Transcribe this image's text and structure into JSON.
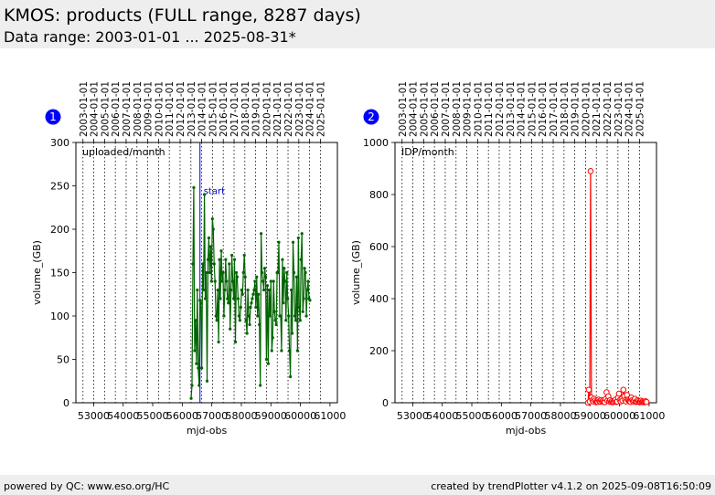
{
  "header": {
    "title": "KMOS: products (FULL range, 8287 days)",
    "subtitle": "Data range: 2003-01-01 ... 2025-08-31*"
  },
  "footer": {
    "left": "powered by QC: www.eso.org/HC",
    "right": "created by trendPlotter v4.1.2 on 2025-09-08T16:50:09"
  },
  "colors": {
    "header_bg": "#eeeeee",
    "badge": "#0000ff",
    "series_uploaded": "#006400",
    "series_idp": "#ff0000",
    "marker_start": "#0000cc"
  },
  "chart_data": [
    {
      "type": "line",
      "badge": "1",
      "legend_text": "uploaded/month",
      "xlabel": "mjd-obs",
      "ylabel": "volume_(GB)",
      "xlim": [
        52400,
        61250
      ],
      "ylim": [
        0,
        300
      ],
      "yticks": [
        0,
        50,
        100,
        150,
        200,
        250,
        300
      ],
      "xticks": [
        53000,
        54000,
        55000,
        56000,
        57000,
        58000,
        59000,
        60000,
        61000
      ],
      "xtick_labels": [
        "53000",
        "54000",
        "55000",
        "56000",
        "57000",
        "58000",
        "59000",
        "60000",
        "61000"
      ],
      "date_ticks": [
        {
          "label": "2003-01-01",
          "mjd": 52640
        },
        {
          "label": "2004-01-01",
          "mjd": 53005
        },
        {
          "label": "2005-01-01",
          "mjd": 53371
        },
        {
          "label": "2006-01-01",
          "mjd": 53736
        },
        {
          "label": "2007-01-01",
          "mjd": 54101
        },
        {
          "label": "2008-01-01",
          "mjd": 54466
        },
        {
          "label": "2009-01-01",
          "mjd": 54832
        },
        {
          "label": "2010-01-01",
          "mjd": 55197
        },
        {
          "label": "2011-01-01",
          "mjd": 55562
        },
        {
          "label": "2012-01-01",
          "mjd": 55927
        },
        {
          "label": "2013-01-01",
          "mjd": 56293
        },
        {
          "label": "2014-01-01",
          "mjd": 56658
        },
        {
          "label": "2015-01-01",
          "mjd": 57023
        },
        {
          "label": "2016-01-01",
          "mjd": 57388
        },
        {
          "label": "2017-01-01",
          "mjd": 57754
        },
        {
          "label": "2018-01-01",
          "mjd": 58119
        },
        {
          "label": "2019-01-01",
          "mjd": 58484
        },
        {
          "label": "2020-01-01",
          "mjd": 58849
        },
        {
          "label": "2021-01-01",
          "mjd": 59215
        },
        {
          "label": "2022-01-01",
          "mjd": 59580
        },
        {
          "label": "2023-01-01",
          "mjd": 59945
        },
        {
          "label": "2024-01-01",
          "mjd": 60310
        },
        {
          "label": "2025-01-01",
          "mjd": 60676
        }
      ],
      "vline": {
        "x": 56600,
        "label": "start"
      },
      "marker": "dot",
      "series": [
        {
          "x": [
            56300,
            56330,
            56360,
            56390,
            56420,
            56450,
            56480,
            56510,
            56540,
            56570,
            56600,
            56630,
            56660,
            56690,
            56720,
            56750,
            56780,
            56810,
            56840,
            56870,
            56900,
            56930,
            56960,
            56990,
            57020,
            57050,
            57080,
            57110,
            57140,
            57170,
            57200,
            57230,
            57260,
            57290,
            57320,
            57350,
            57380,
            57410,
            57440,
            57470,
            57500,
            57530,
            57560,
            57590,
            57620,
            57650,
            57680,
            57710,
            57740,
            57770,
            57800,
            57830,
            57860,
            57890,
            57920,
            57950,
            57980,
            58010,
            58040,
            58070,
            58100,
            58130,
            58160,
            58190,
            58220,
            58250,
            58280,
            58310,
            58340,
            58370,
            58400,
            58430,
            58460,
            58490,
            58520,
            58550,
            58580,
            58610,
            58640,
            58670,
            58700,
            58730,
            58760,
            58790,
            58820,
            58850,
            58880,
            58910,
            58940,
            58970,
            59000,
            59030,
            59060,
            59090,
            59120,
            59150,
            59180,
            59210,
            59240,
            59270,
            59300,
            59330,
            59360,
            59390,
            59420,
            59450,
            59480,
            59510,
            59540,
            59570,
            59600,
            59630,
            59660,
            59690,
            59720,
            59750,
            59780,
            59810,
            59840,
            59870,
            59900,
            59930,
            59960,
            59990,
            60020,
            60050,
            60080,
            60110,
            60140,
            60170,
            60200,
            60230,
            60260,
            60290,
            60320
          ],
          "y": [
            5,
            20,
            160,
            248,
            60,
            95,
            45,
            130,
            40,
            20,
            118,
            115,
            40,
            160,
            130,
            240,
            120,
            150,
            25,
            165,
            190,
            150,
            180,
            140,
            212,
            200,
            160,
            140,
            100,
            95,
            130,
            70,
            165,
            120,
            175,
            140,
            150,
            100,
            130,
            165,
            140,
            120,
            115,
            160,
            85,
            130,
            170,
            140,
            120,
            165,
            70,
            150,
            145,
            120,
            100,
            95,
            110,
            130,
            125,
            150,
            170,
            145,
            95,
            80,
            130,
            100,
            90,
            110,
            115,
            120,
            125,
            130,
            140,
            110,
            145,
            100,
            125,
            90,
            20,
            195,
            150,
            140,
            130,
            155,
            145,
            50,
            135,
            45,
            130,
            100,
            140,
            60,
            75,
            140,
            105,
            95,
            90,
            150,
            150,
            185,
            100,
            100,
            60,
            165,
            115,
            155,
            140,
            95,
            150,
            120,
            100,
            60,
            30,
            130,
            80,
            185,
            150,
            100,
            95,
            145,
            60,
            190,
            110,
            95,
            165,
            195,
            105,
            120,
            155,
            150,
            100,
            130,
            140,
            120,
            118
          ]
        }
      ]
    },
    {
      "type": "line",
      "badge": "2",
      "legend_text": "IDP/month",
      "xlabel": "mjd-obs",
      "ylabel": "volume_(GB)",
      "xlim": [
        52400,
        61250
      ],
      "ylim": [
        0,
        1000
      ],
      "yticks": [
        0,
        200,
        400,
        600,
        800,
        1000
      ],
      "xticks": [
        53000,
        54000,
        55000,
        56000,
        57000,
        58000,
        59000,
        60000,
        61000
      ],
      "xtick_labels": [
        "53000",
        "54000",
        "55000",
        "56000",
        "57000",
        "58000",
        "59000",
        "60000",
        "61000"
      ],
      "date_ticks": [
        {
          "label": "2003-01-01",
          "mjd": 52640
        },
        {
          "label": "2004-01-01",
          "mjd": 53005
        },
        {
          "label": "2005-01-01",
          "mjd": 53371
        },
        {
          "label": "2006-01-01",
          "mjd": 53736
        },
        {
          "label": "2007-01-01",
          "mjd": 54101
        },
        {
          "label": "2008-01-01",
          "mjd": 54466
        },
        {
          "label": "2009-01-01",
          "mjd": 54832
        },
        {
          "label": "2010-01-01",
          "mjd": 55197
        },
        {
          "label": "2011-01-01",
          "mjd": 55562
        },
        {
          "label": "2012-01-01",
          "mjd": 55927
        },
        {
          "label": "2013-01-01",
          "mjd": 56293
        },
        {
          "label": "2014-01-01",
          "mjd": 56658
        },
        {
          "label": "2015-01-01",
          "mjd": 57023
        },
        {
          "label": "2016-01-01",
          "mjd": 57388
        },
        {
          "label": "2017-01-01",
          "mjd": 57754
        },
        {
          "label": "2018-01-01",
          "mjd": 58119
        },
        {
          "label": "2019-01-01",
          "mjd": 58484
        },
        {
          "label": "2020-01-01",
          "mjd": 58849
        },
        {
          "label": "2021-01-01",
          "mjd": 59215
        },
        {
          "label": "2022-01-01",
          "mjd": 59580
        },
        {
          "label": "2023-01-01",
          "mjd": 59945
        },
        {
          "label": "2024-01-01",
          "mjd": 60310
        },
        {
          "label": "2025-01-01",
          "mjd": 60676
        }
      ],
      "marker": "open-circle",
      "series": [
        {
          "x": [
            58930,
            58960,
            58990,
            59020,
            59050,
            59080,
            59110,
            59140,
            59170,
            59200,
            59230,
            59260,
            59290,
            59320,
            59350,
            59380,
            59410,
            59440,
            59470,
            59500,
            59530,
            59560,
            59590,
            59620,
            59650,
            59680,
            59710,
            59740,
            59770,
            59800,
            59830,
            59860,
            59890,
            59920,
            59950,
            59980,
            60010,
            60040,
            60070,
            60100,
            60130,
            60160,
            60190,
            60220,
            60250,
            60280,
            60310,
            60340,
            60370,
            60400,
            60430,
            60460,
            60490,
            60520,
            60550,
            60580,
            60610,
            60640,
            60670,
            60700,
            60730,
            60760,
            60790,
            60820,
            60850,
            60880,
            60910
          ],
          "y": [
            0,
            50,
            5,
            890,
            20,
            10,
            5,
            15,
            8,
            2,
            5,
            3,
            12,
            6,
            4,
            10,
            5,
            8,
            3,
            2,
            15,
            40,
            8,
            25,
            5,
            10,
            3,
            6,
            2,
            4,
            8,
            12,
            3,
            5,
            20,
            35,
            10,
            5,
            15,
            8,
            50,
            25,
            10,
            5,
            30,
            12,
            8,
            5,
            3,
            20,
            10,
            5,
            8,
            15,
            3,
            5,
            10,
            6,
            2,
            4,
            8,
            3,
            5,
            2,
            4,
            6,
            3
          ]
        }
      ]
    }
  ]
}
